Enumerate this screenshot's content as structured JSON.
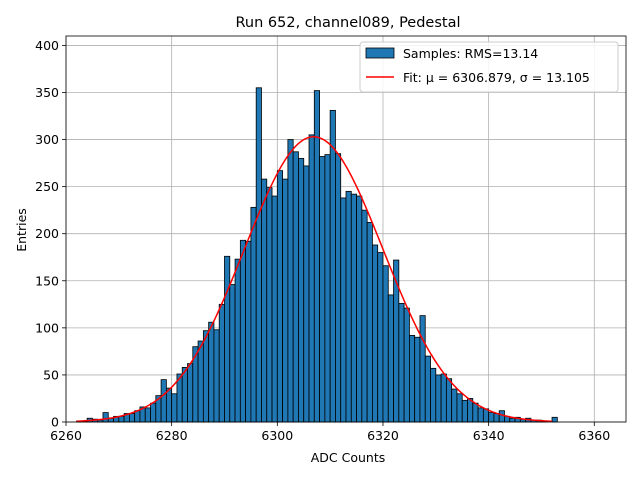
{
  "chart_data": {
    "type": "bar",
    "title": "Run 652, channel089, Pedestal",
    "xlabel": "ADC Counts",
    "ylabel": "Entries",
    "xlim": [
      6260,
      6366
    ],
    "ylim": [
      0,
      410
    ],
    "xticks": [
      6260,
      6280,
      6300,
      6320,
      6340,
      6360
    ],
    "yticks": [
      0,
      50,
      100,
      150,
      200,
      250,
      300,
      350,
      400
    ],
    "grid": true,
    "legend_position": "top-right",
    "histogram": {
      "name": "Samples: RMS=13.14",
      "color": "#1f77b4",
      "edgecolor": "#000000",
      "bin_start": 6262,
      "bin_width": 1,
      "counts": [
        1,
        1,
        4,
        3,
        2,
        10,
        4,
        6,
        6,
        9,
        9,
        12,
        16,
        15,
        20,
        28,
        45,
        36,
        30,
        51,
        58,
        62,
        80,
        86,
        97,
        106,
        98,
        125,
        176,
        146,
        173,
        193,
        192,
        228,
        355,
        258,
        249,
        240,
        267,
        258,
        300,
        287,
        280,
        272,
        305,
        352,
        282,
        284,
        331,
        285,
        238,
        245,
        242,
        240,
        225,
        212,
        188,
        180,
        166,
        135,
        172,
        126,
        121,
        92,
        90,
        113,
        70,
        57,
        50,
        51,
        46,
        35,
        30,
        23,
        25,
        20,
        15,
        14,
        10,
        9,
        12,
        6,
        4,
        5,
        3,
        4,
        2,
        2,
        1,
        0,
        5
      ]
    },
    "fit": {
      "name": "Fit: μ = 6306.879, σ = 13.105",
      "color": "#ff0000",
      "mu": 6306.879,
      "sigma": 13.105,
      "amplitude": 303,
      "x_range": [
        6262,
        6352
      ]
    }
  }
}
